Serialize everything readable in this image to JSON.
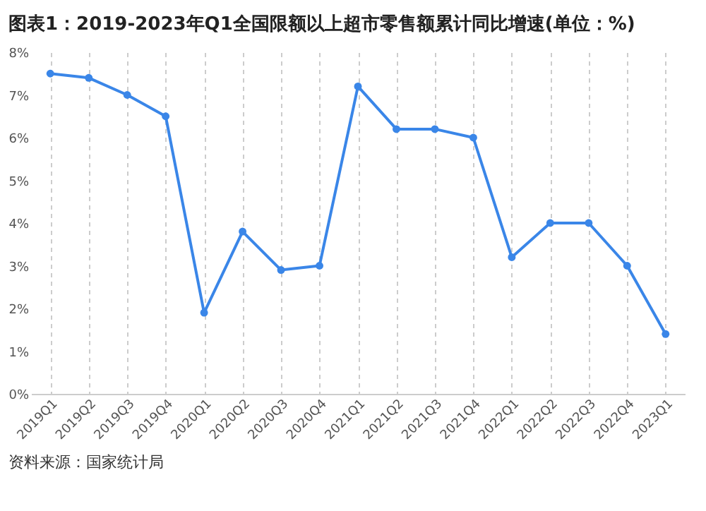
{
  "chart_data": {
    "type": "line",
    "title": "图表1：2019-2023年Q1全国限额以上超市零售额累计同比增速(单位：%)",
    "categories": [
      "2019Q1",
      "2019Q2",
      "2019Q3",
      "2019Q4",
      "2020Q1",
      "2020Q2",
      "2020Q3",
      "2020Q4",
      "2021Q1",
      "2021Q2",
      "2021Q3",
      "2021Q4",
      "2022Q1",
      "2022Q2",
      "2022Q3",
      "2022Q4",
      "2023Q1"
    ],
    "series": [
      {
        "color": "#3a86e8",
        "values": [
          7.5,
          7.4,
          7.0,
          6.5,
          1.9,
          3.8,
          2.9,
          3.0,
          7.2,
          6.2,
          6.2,
          6.0,
          3.2,
          4.0,
          4.0,
          3.0,
          1.4
        ]
      }
    ],
    "ylim": [
      0,
      8
    ],
    "yticks": [
      {
        "value": 0,
        "label": "0%"
      },
      {
        "value": 1,
        "label": "1%"
      },
      {
        "value": 2,
        "label": "2%"
      },
      {
        "value": 3,
        "label": "3%"
      },
      {
        "value": 4,
        "label": "4%"
      },
      {
        "value": 5,
        "label": "5%"
      },
      {
        "value": 6,
        "label": "6%"
      },
      {
        "value": 7,
        "label": "7%"
      },
      {
        "value": 8,
        "label": "8%"
      }
    ],
    "grid": "x",
    "marker": "circle",
    "line_style": "solid",
    "annotations": [
      "资料来源：国家统计局"
    ]
  }
}
